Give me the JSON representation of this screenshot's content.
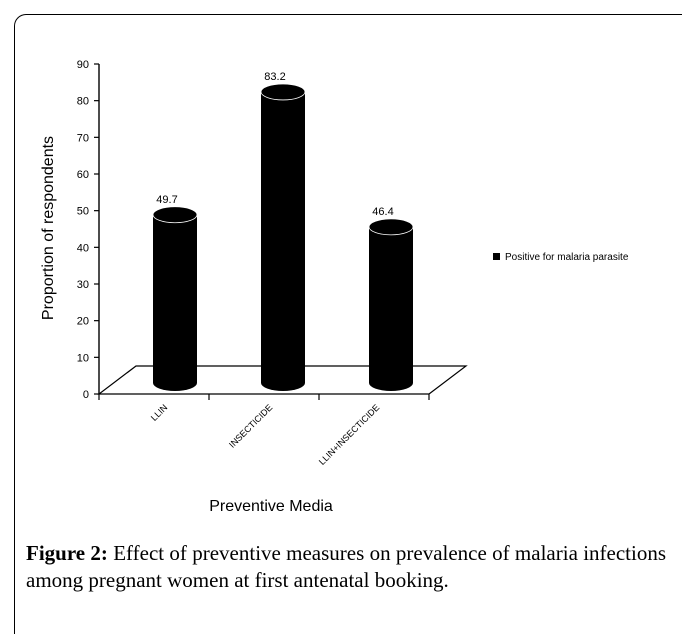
{
  "chart_data": {
    "type": "bar",
    "categories": [
      "LLIN",
      "INSECTICIDE",
      "LLIN+INSECTICIDE"
    ],
    "series": [
      {
        "name": "Positive for malaria parasite",
        "values": [
          49.7,
          83.2,
          46.4
        ]
      }
    ],
    "data_labels": [
      "49.7",
      "83.2",
      "46.4"
    ],
    "xlabel": "Preventive Media",
    "ylabel": "Proportion of respondents",
    "ylim": [
      0,
      90
    ],
    "yticks": [
      0,
      10,
      20,
      30,
      40,
      50,
      60,
      70,
      80,
      90
    ],
    "grid": false,
    "legend_position": "right",
    "bar_color": "#000000"
  },
  "caption": {
    "label": "Figure 2:",
    "text": "Effect of preventive measures on prevalence of malaria infections among pregnant women at first antenatal booking."
  }
}
